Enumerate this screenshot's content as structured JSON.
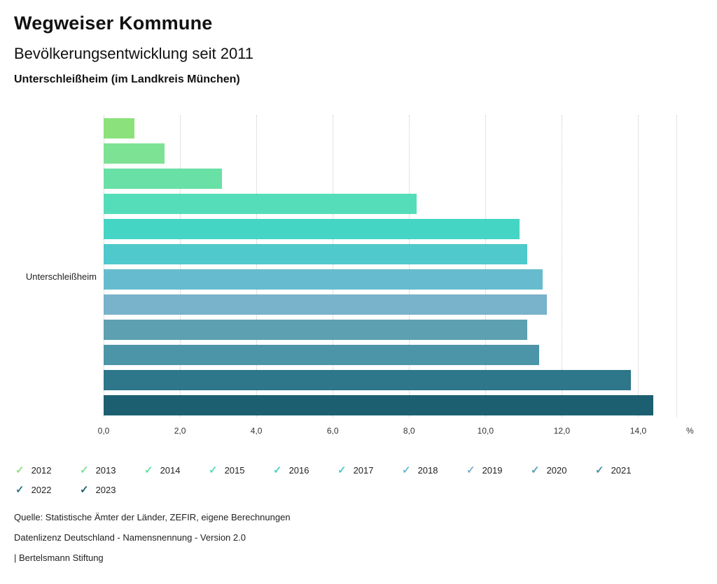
{
  "header": {
    "title": "Wegweiser Kommune",
    "subtitle": "Bevölkerungsentwicklung seit 2011",
    "region": "Unterschleißheim (im Landkreis München)"
  },
  "icons": {
    "legend_check_glyph": "✓"
  },
  "chart_data": {
    "type": "bar",
    "orientation": "horizontal",
    "title": "Bevölkerungsentwicklung seit 2011",
    "subtitle": "Unterschleißheim (im Landkreis München)",
    "y_label": "Unterschleißheim",
    "x_unit": "%",
    "xlim": [
      0,
      15
    ],
    "x_tick_values": [
      0,
      2,
      4,
      6,
      8,
      10,
      12,
      14
    ],
    "x_ticks": [
      "0,0",
      "2,0",
      "4,0",
      "6,0",
      "8,0",
      "10,0",
      "12,0",
      "14,0"
    ],
    "grid_values": [
      0,
      2,
      4,
      6,
      8,
      10,
      12,
      14,
      15
    ],
    "grid": "dotted-vertical",
    "legend_position": "bottom",
    "series": [
      {
        "name": "2012",
        "value": 0.8,
        "color": "#8BE17B"
      },
      {
        "name": "2013",
        "value": 1.6,
        "color": "#7EE294"
      },
      {
        "name": "2014",
        "value": 3.1,
        "color": "#69E0A5"
      },
      {
        "name": "2015",
        "value": 8.2,
        "color": "#55DDBA"
      },
      {
        "name": "2016",
        "value": 10.9,
        "color": "#45D5C5"
      },
      {
        "name": "2017",
        "value": 11.1,
        "color": "#4FC9CB"
      },
      {
        "name": "2018",
        "value": 11.5,
        "color": "#66BCCE"
      },
      {
        "name": "2019",
        "value": 11.6,
        "color": "#78B2CB"
      },
      {
        "name": "2020",
        "value": 11.1,
        "color": "#5CA0B2"
      },
      {
        "name": "2021",
        "value": 11.4,
        "color": "#4C94A8"
      },
      {
        "name": "2022",
        "value": 13.8,
        "color": "#2E7689"
      },
      {
        "name": "2023",
        "value": 14.4,
        "color": "#1C5F70"
      }
    ]
  },
  "footer": {
    "source": "Quelle: Statistische Ämter der Länder, ZEFIR, eigene Berechnungen",
    "license": "Datenlizenz Deutschland - Namensnennung - Version 2.0",
    "attribution": "| Bertelsmann Stiftung"
  }
}
